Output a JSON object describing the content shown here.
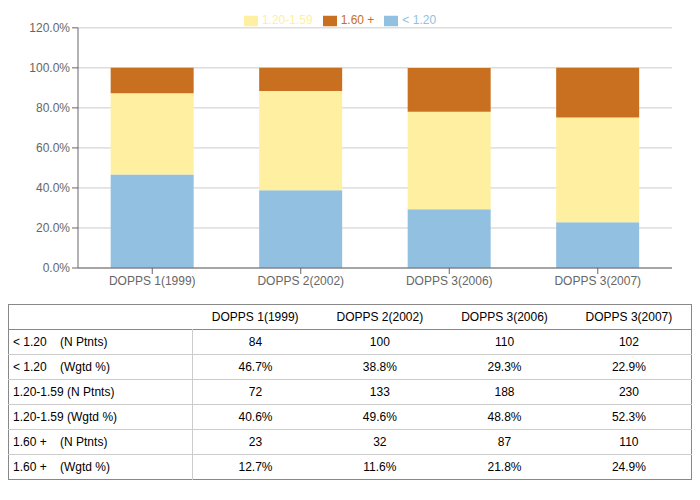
{
  "chart_data": {
    "type": "bar",
    "stacked": true,
    "grid": true,
    "legend": "top",
    "categories": [
      "DOPPS 1(1999)",
      "DOPPS 2(2002)",
      "DOPPS 3(2006)",
      "DOPPS 3(2007)"
    ],
    "series": [
      {
        "name": "< 1.20",
        "color": "#92C0E0",
        "values": [
          0.467,
          0.388,
          0.293,
          0.229
        ]
      },
      {
        "name": "1.20-1.59",
        "color": "#FFEFA0",
        "values": [
          0.406,
          0.496,
          0.488,
          0.523
        ]
      },
      {
        "name": "1.60 +",
        "color": "#C87020",
        "values": [
          0.127,
          0.116,
          0.218,
          0.249
        ]
      }
    ],
    "ylim": [
      0,
      1.2
    ],
    "yticks": [
      {
        "value": 0.0,
        "label": "0.0%"
      },
      {
        "value": 0.2,
        "label": "20.0%"
      },
      {
        "value": 0.4,
        "label": "40.0%"
      },
      {
        "value": 0.6,
        "label": "60.0%"
      },
      {
        "value": 0.8,
        "label": "80.0%"
      },
      {
        "value": 1.0,
        "label": "100.0%"
      },
      {
        "value": 1.2,
        "label": "120.0%"
      }
    ],
    "table": {
      "row_labels": [
        "< 1.20    (N Ptnts)",
        "< 1.20    (Wgtd %)",
        "1.20-1.59 (N Ptnts)",
        "1.20-1.59 (Wgtd %)",
        "1.60 +    (N Ptnts)",
        "1.60 +    (Wgtd %)"
      ],
      "values": [
        [
          "84",
          "100",
          "110",
          "102"
        ],
        [
          "46.7%",
          "38.8%",
          "29.3%",
          "22.9%"
        ],
        [
          "72",
          "133",
          "188",
          "230"
        ],
        [
          "40.6%",
          "49.6%",
          "48.8%",
          "52.3%"
        ],
        [
          "23",
          "32",
          "87",
          "110"
        ],
        [
          "12.7%",
          "11.6%",
          "21.8%",
          "24.9%"
        ]
      ]
    }
  }
}
